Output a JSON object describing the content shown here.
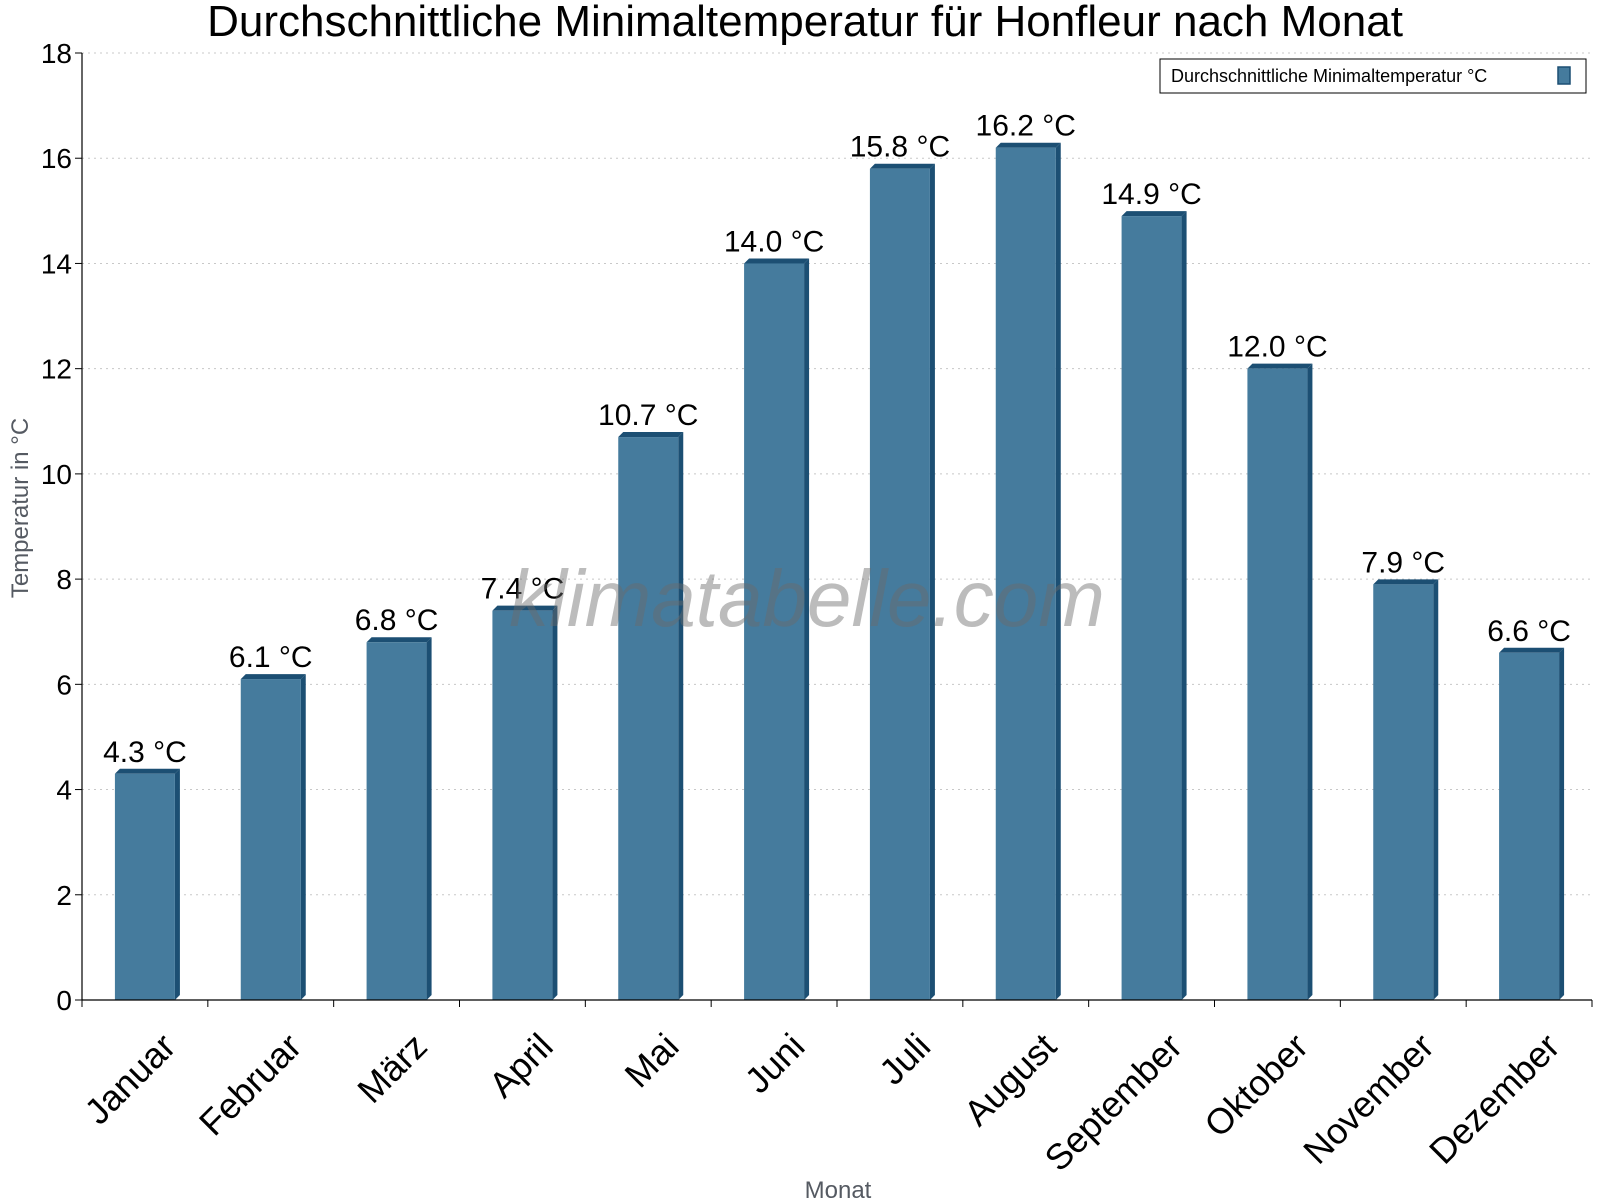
{
  "chart_data": {
    "type": "bar",
    "title": "Durchschnittliche Minimaltemperatur für Honfleur nach Monat",
    "xlabel": "Monat",
    "ylabel": "Temperatur in °C",
    "categories": [
      "Januar",
      "Februar",
      "März",
      "April",
      "Mai",
      "Juni",
      "Juli",
      "August",
      "September",
      "Oktober",
      "November",
      "Dezember"
    ],
    "series": [
      {
        "name": "Durchschnittliche Minimaltemperatur °C",
        "values": [
          4.3,
          6.1,
          6.8,
          7.4,
          10.7,
          14.0,
          15.8,
          16.2,
          14.9,
          12.0,
          7.9,
          6.6
        ],
        "labels": [
          "4.3 °C",
          "6.1 °C",
          "6.8 °C",
          "7.4 °C",
          "10.7 °C",
          "14.0 °C",
          "15.8 °C",
          "16.2 °C",
          "14.9 °C",
          "12.0 °C",
          "7.9 °C",
          "6.6 °C"
        ]
      }
    ],
    "ylim": [
      0,
      18
    ],
    "yticks": [
      0,
      2,
      4,
      6,
      8,
      10,
      12,
      14,
      16,
      18
    ],
    "grid": true,
    "legend_position": "top-right",
    "bar_color": "#457b9d",
    "bar_edge_color": "#1c4f73"
  },
  "watermark": "klimatabelle.com"
}
